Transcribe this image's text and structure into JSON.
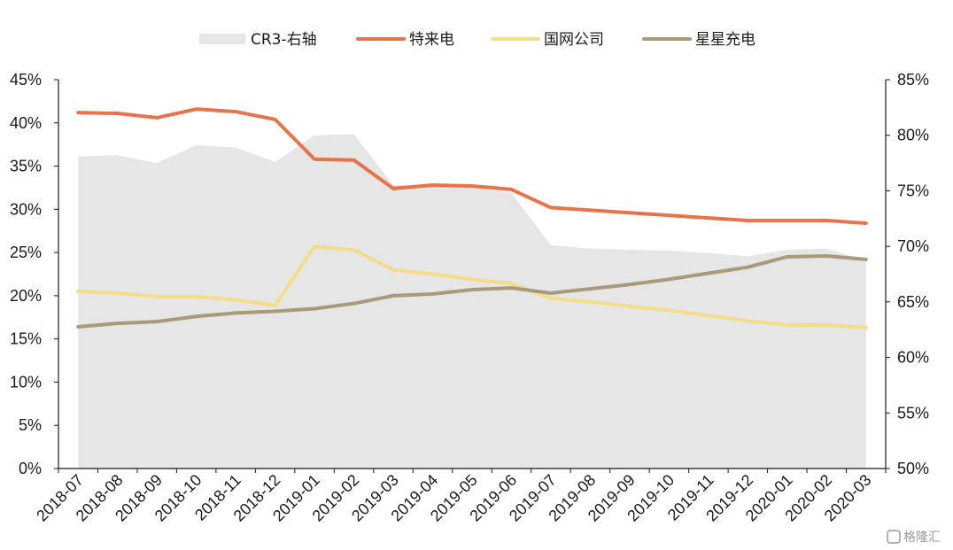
{
  "watermark": "格隆汇",
  "chart_data": {
    "type": "line",
    "categories": [
      "2018-07",
      "2018-08",
      "2018-09",
      "2018-10",
      "2018-11",
      "2018-12",
      "2019-01",
      "2019-02",
      "2019-03",
      "2019-04",
      "2019-05",
      "2019-06",
      "2019-07",
      "2019-08",
      "2019-09",
      "2019-10",
      "2019-11",
      "2019-12",
      "2020-01",
      "2020-02",
      "2020-03"
    ],
    "y_left": {
      "min": 0,
      "max": 45,
      "step": 5,
      "ticks": [
        "0%",
        "5%",
        "10%",
        "15%",
        "20%",
        "25%",
        "30%",
        "35%",
        "40%",
        "45%"
      ]
    },
    "y_right": {
      "min": 50,
      "max": 85,
      "step": 5,
      "ticks": [
        "50%",
        "55%",
        "60%",
        "65%",
        "70%",
        "75%",
        "80%",
        "85%"
      ]
    },
    "legend_position": "top",
    "series": [
      {
        "name": "CR3-右轴",
        "type": "area",
        "axis": "right",
        "color": "#e6e6e6",
        "values": [
          78.1,
          78.2,
          77.5,
          79.1,
          78.9,
          77.6,
          80.0,
          80.1,
          75.5,
          75.5,
          75.3,
          74.8,
          70.1,
          69.8,
          69.7,
          69.6,
          69.4,
          69.1,
          69.7,
          69.8,
          68.7
        ]
      },
      {
        "name": "特来电",
        "type": "line",
        "axis": "left",
        "color": "#e8724a",
        "values": [
          41.2,
          41.1,
          40.6,
          41.6,
          41.3,
          40.4,
          35.8,
          35.7,
          32.4,
          32.8,
          32.7,
          32.3,
          30.2,
          29.9,
          29.6,
          29.3,
          29.0,
          28.7,
          28.7,
          28.7,
          28.4
        ]
      },
      {
        "name": "国网公司",
        "type": "line",
        "axis": "left",
        "color": "#f3dc8a",
        "values": [
          20.5,
          20.3,
          19.9,
          19.9,
          19.5,
          18.9,
          25.7,
          25.3,
          23.0,
          22.5,
          21.9,
          21.4,
          19.7,
          19.3,
          18.8,
          18.3,
          17.7,
          17.1,
          16.6,
          16.6,
          16.3
        ]
      },
      {
        "name": "星星充电",
        "type": "line",
        "axis": "left",
        "color": "#a99a7a",
        "values": [
          16.4,
          16.8,
          17.0,
          17.6,
          18.0,
          18.2,
          18.5,
          19.1,
          20.0,
          20.2,
          20.7,
          20.9,
          20.3,
          20.8,
          21.3,
          21.9,
          22.6,
          23.3,
          24.5,
          24.6,
          24.2
        ]
      }
    ]
  }
}
